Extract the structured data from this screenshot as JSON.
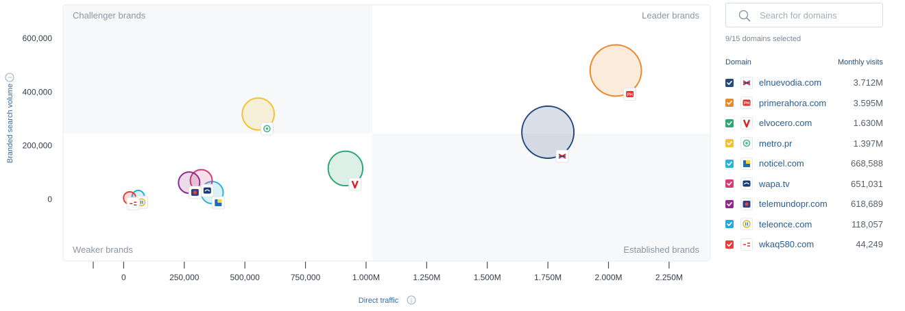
{
  "chart_data": {
    "type": "bubble",
    "xlabel": "Direct traffic",
    "ylabel": "Branded search volume",
    "x_ticks": [
      "0",
      "250,000",
      "500,000",
      "750,000",
      "1.000M",
      "1.250M",
      "1.500M",
      "1.750M",
      "2.000M",
      "2.250M"
    ],
    "x_tick_values": [
      0,
      250000,
      500000,
      750000,
      1000000,
      1250000,
      1500000,
      1750000,
      2000000,
      2250000
    ],
    "y_ticks": [
      "600,000",
      "400,000",
      "200,000",
      "0"
    ],
    "y_tick_values": [
      600000,
      400000,
      200000,
      0
    ],
    "xlim": [
      -250000,
      2420000
    ],
    "ylim": [
      -230000,
      725000
    ],
    "quadrants": {
      "top_left": "Challenger brands",
      "top_right": "Leader brands",
      "bottom_left": "Weaker brands",
      "bottom_right": "Established brands"
    },
    "series": [
      {
        "domain": "elnuevodia.com",
        "x": 1750000,
        "y": 250000,
        "visits": 3712000,
        "color": "#244a7a",
        "icon": "elnuevodia-favicon"
      },
      {
        "domain": "primerahora.com",
        "x": 2030000,
        "y": 480000,
        "visits": 3595000,
        "color": "#e8892c",
        "icon": "primerahora-favicon"
      },
      {
        "domain": "elvocero.com",
        "x": 915000,
        "y": 115000,
        "visits": 1630000,
        "color": "#2fa676",
        "icon": "elvocero-favicon"
      },
      {
        "domain": "metro.pr",
        "x": 555000,
        "y": 318000,
        "visits": 1397000,
        "color": "#f2c230",
        "icon": "metro-favicon"
      },
      {
        "domain": "noticel.com",
        "x": 365000,
        "y": 25000,
        "visits": 668588,
        "color": "#2bb3d8",
        "icon": "noticel-favicon"
      },
      {
        "domain": "wapa.tv",
        "x": 320000,
        "y": 70000,
        "visits": 651031,
        "color": "#d63b74",
        "icon": "wapa-favicon"
      },
      {
        "domain": "telemundopr.com",
        "x": 270000,
        "y": 62000,
        "visits": 618689,
        "color": "#8e2c8a",
        "icon": "telemundo-favicon"
      },
      {
        "domain": "teleonce.com",
        "x": 60000,
        "y": 10000,
        "visits": 118057,
        "color": "#2aa8d8",
        "icon": "teleonce-favicon"
      },
      {
        "domain": "wkaq580.com",
        "x": 25000,
        "y": 5000,
        "visits": 44249,
        "color": "#e0413c",
        "icon": "wkaq-favicon"
      }
    ]
  },
  "panel": {
    "search_placeholder": "Search for domains",
    "selected_count": "9/15 domains selected",
    "col_domain": "Domain",
    "col_visits": "Monthly visits",
    "rows": [
      {
        "domain": "elnuevodia.com",
        "visits": "3.712M",
        "color": "#244a7a"
      },
      {
        "domain": "primerahora.com",
        "visits": "3.595M",
        "color": "#e8892c"
      },
      {
        "domain": "elvocero.com",
        "visits": "1.630M",
        "color": "#2fa676"
      },
      {
        "domain": "metro.pr",
        "visits": "1.397M",
        "color": "#f2c230"
      },
      {
        "domain": "noticel.com",
        "visits": "668,588",
        "color": "#2bb3d8"
      },
      {
        "domain": "wapa.tv",
        "visits": "651,031",
        "color": "#d63b74"
      },
      {
        "domain": "telemundopr.com",
        "visits": "618,689",
        "color": "#8e2c8a"
      },
      {
        "domain": "teleonce.com",
        "visits": "118,057",
        "color": "#2aa8d8"
      },
      {
        "domain": "wkaq580.com",
        "visits": "44,249",
        "color": "#e0413c"
      }
    ]
  }
}
